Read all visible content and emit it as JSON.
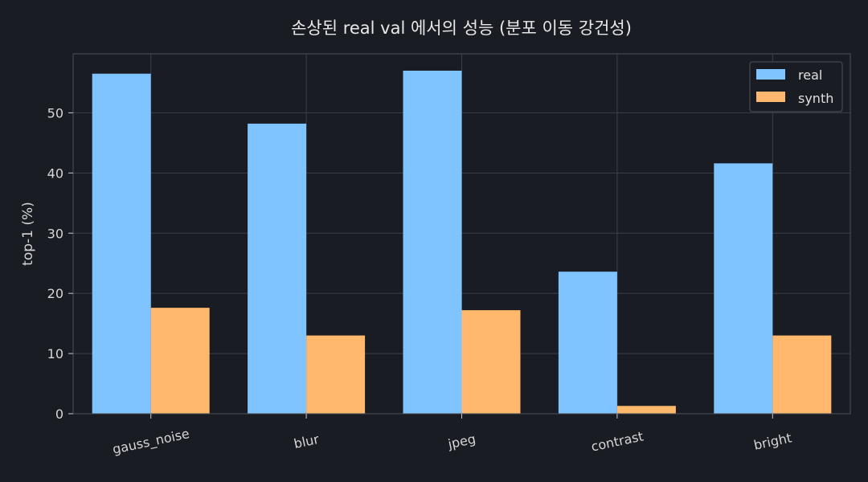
{
  "chart_data": {
    "type": "bar",
    "title": "손상된 real val 에서의 성능 (분포 이동 강건성)",
    "xlabel": "",
    "ylabel": "top-1 (%)",
    "categories": [
      "gauss_noise",
      "blur",
      "jpeg",
      "contrast",
      "bright"
    ],
    "series": [
      {
        "name": "real",
        "values": [
          56.5,
          48.2,
          57.0,
          23.6,
          41.6
        ],
        "color": "#7fc4ff"
      },
      {
        "name": "synth",
        "values": [
          17.6,
          13.0,
          17.2,
          1.3,
          13.0
        ],
        "color": "#ffb86c"
      }
    ],
    "ylim": [
      0,
      59.8
    ],
    "yticks": [
      0,
      10,
      20,
      30,
      40,
      50
    ],
    "grid": true,
    "legend_position": "top-right",
    "colors": {
      "background": "#191c23",
      "grid": "#3a3f4a",
      "axes": "#4a4f5a",
      "text": "#d6d6d6"
    }
  }
}
